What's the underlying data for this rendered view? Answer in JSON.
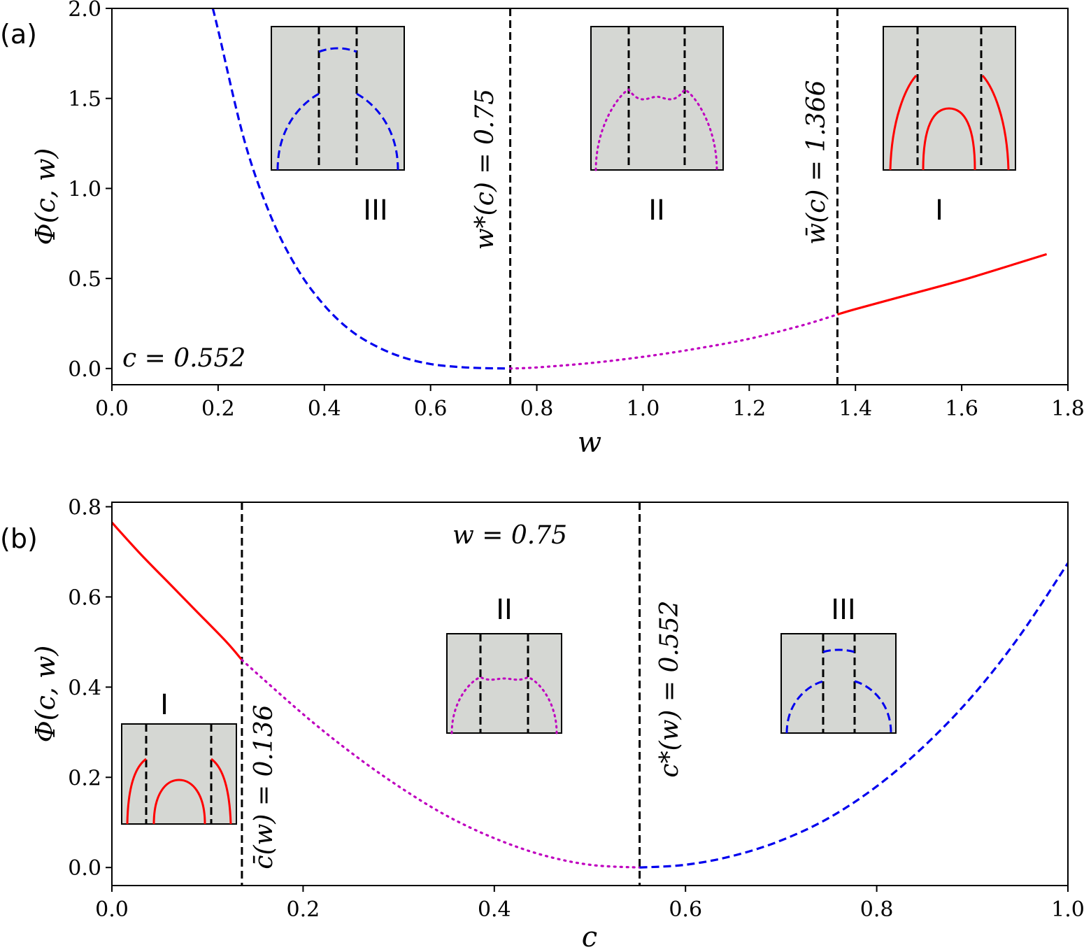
{
  "figure_labels": {
    "a": "(a)",
    "b": "(b)"
  },
  "colors": {
    "region_I": "#ff0000",
    "region_II": "#bf00bf",
    "region_III": "#0000ee",
    "inset_bg": "#d5d7d3",
    "marker": "#000000"
  },
  "chart_data": [
    {
      "id": "a",
      "type": "line",
      "xlabel": "w",
      "ylabel": "Φ(c, w)",
      "xlim": [
        0.0,
        1.8
      ],
      "ylim": [
        -0.09,
        2.0
      ],
      "xticks": [
        "0.0",
        "0.2",
        "0.4",
        "0.6",
        "0.8",
        "1.0",
        "1.2",
        "1.4",
        "1.6",
        "1.8"
      ],
      "yticks": [
        "0.0",
        "0.5",
        "1.0",
        "1.5",
        "2.0"
      ],
      "param_text": "c = 0.552",
      "vlines": [
        {
          "x": 0.75,
          "label": "w*(c) = 0.75"
        },
        {
          "x": 1.366,
          "label": "w̄(c) = 1.366"
        }
      ],
      "series": [
        {
          "name": "III",
          "style": "dashed",
          "color": "blue",
          "x": [
            0.19,
            0.2,
            0.25,
            0.3,
            0.35,
            0.4,
            0.45,
            0.5,
            0.55,
            0.6,
            0.65,
            0.7,
            0.75
          ],
          "y": [
            2.0,
            1.88,
            1.26,
            0.84,
            0.55,
            0.35,
            0.21,
            0.12,
            0.06,
            0.025,
            0.009,
            0.002,
            0.0
          ]
        },
        {
          "name": "II",
          "style": "dotted",
          "color": "magenta",
          "x": [
            0.75,
            0.8,
            0.9,
            1.0,
            1.1,
            1.2,
            1.3,
            1.366
          ],
          "y": [
            0.0,
            0.006,
            0.03,
            0.065,
            0.11,
            0.165,
            0.24,
            0.3
          ]
        },
        {
          "name": "I",
          "style": "solid",
          "color": "red",
          "x": [
            1.366,
            1.4,
            1.5,
            1.6,
            1.7,
            1.76
          ],
          "y": [
            0.3,
            0.33,
            0.41,
            0.49,
            0.58,
            0.635
          ]
        }
      ],
      "regions": [
        {
          "label": "III",
          "inset": "III"
        },
        {
          "label": "II",
          "inset": "II"
        },
        {
          "label": "I",
          "inset": "I"
        }
      ]
    },
    {
      "id": "b",
      "type": "line",
      "xlabel": "c",
      "ylabel": "Φ(c, w)",
      "xlim": [
        0.0,
        1.0
      ],
      "ylim": [
        -0.04,
        0.81
      ],
      "xticks": [
        "0.0",
        "0.2",
        "0.4",
        "0.6",
        "0.8",
        "1.0"
      ],
      "yticks": [
        "0.0",
        "0.2",
        "0.4",
        "0.6",
        "0.8"
      ],
      "param_text": "w = 0.75",
      "vlines": [
        {
          "x": 0.136,
          "label": "c̄(w) = 0.136"
        },
        {
          "x": 0.552,
          "label": "c*(w) = 0.552"
        }
      ],
      "series": [
        {
          "name": "I",
          "style": "solid",
          "color": "red",
          "x": [
            0.0,
            0.03,
            0.06,
            0.09,
            0.12,
            0.136
          ],
          "y": [
            0.765,
            0.695,
            0.63,
            0.565,
            0.5,
            0.46
          ]
        },
        {
          "name": "II",
          "style": "dotted",
          "color": "magenta",
          "x": [
            0.136,
            0.2,
            0.25,
            0.3,
            0.35,
            0.4,
            0.45,
            0.5,
            0.552
          ],
          "y": [
            0.46,
            0.34,
            0.255,
            0.18,
            0.115,
            0.065,
            0.028,
            0.006,
            0.0
          ]
        },
        {
          "name": "III",
          "style": "dashed",
          "color": "blue",
          "x": [
            0.552,
            0.6,
            0.65,
            0.7,
            0.75,
            0.8,
            0.85,
            0.9,
            0.95,
            1.0
          ],
          "y": [
            0.0,
            0.006,
            0.026,
            0.06,
            0.11,
            0.18,
            0.27,
            0.38,
            0.515,
            0.675
          ]
        }
      ],
      "regions": [
        {
          "label": "I",
          "inset": "I"
        },
        {
          "label": "II",
          "inset": "II"
        },
        {
          "label": "III",
          "inset": "III"
        }
      ]
    }
  ]
}
